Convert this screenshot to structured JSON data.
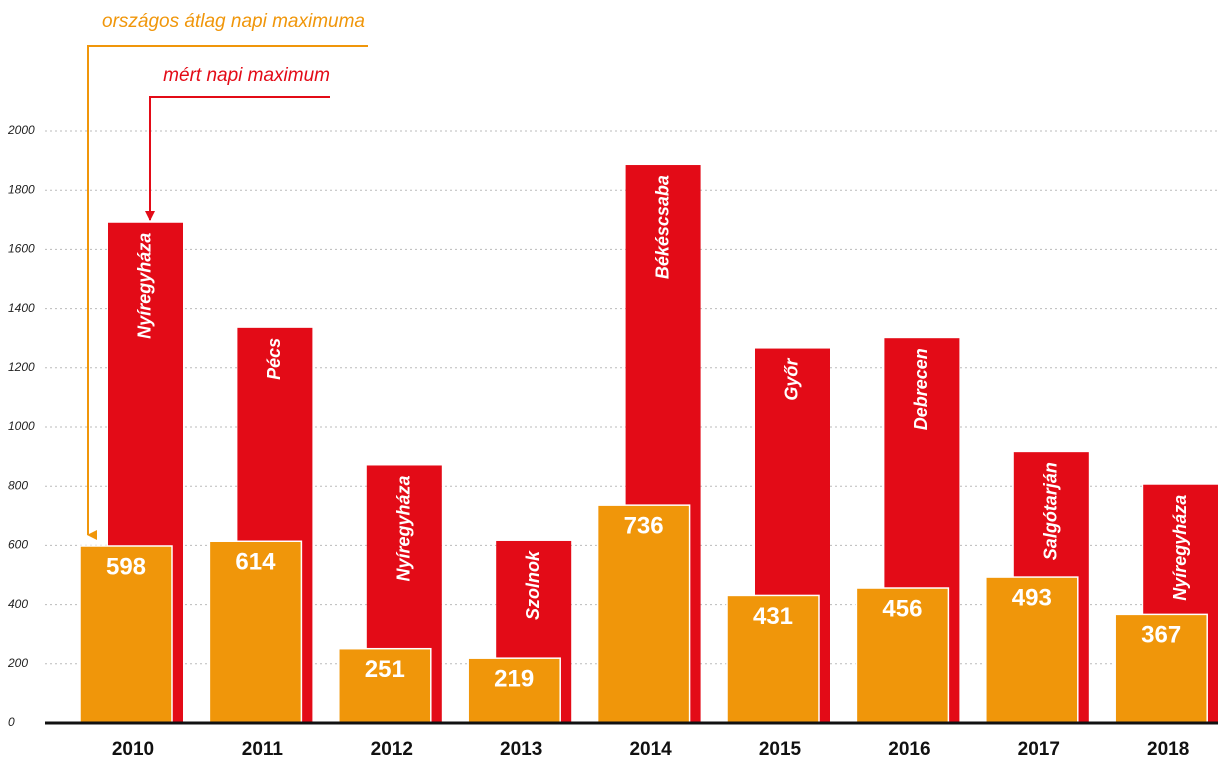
{
  "chart_data": {
    "type": "bar",
    "categories": [
      "2010",
      "2011",
      "2012",
      "2013",
      "2014",
      "2015",
      "2016",
      "2017",
      "2018"
    ],
    "series": [
      {
        "name": "országos átlag napi maximuma",
        "color": "#f0960a",
        "values": [
          598,
          614,
          251,
          219,
          736,
          431,
          456,
          493,
          367
        ]
      },
      {
        "name": "mért napi maximum",
        "color": "#e30b17",
        "values": [
          1690,
          1335,
          870,
          615,
          1885,
          1265,
          1300,
          915,
          805
        ],
        "cities": [
          "Nyíregyháza",
          "Pécs",
          "Nyíregyháza",
          "Szolnok",
          "Békéscsaba",
          "Győr",
          "Debrecen",
          "Salgótarján",
          "Nyíregyháza"
        ]
      }
    ],
    "ylim": [
      0,
      2000
    ],
    "yticks": [
      0,
      200,
      400,
      600,
      800,
      1000,
      1200,
      1400,
      1600,
      1800,
      2000
    ],
    "grid": true
  }
}
